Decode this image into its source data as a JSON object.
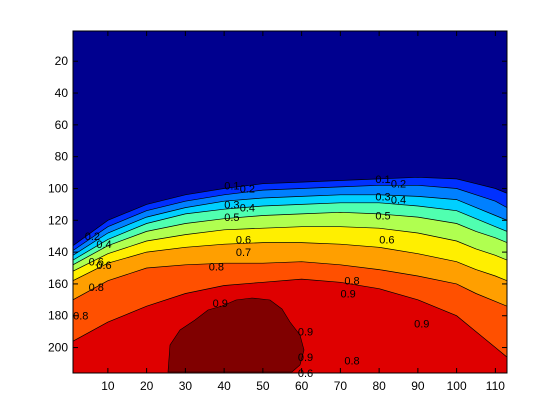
{
  "chart_data": {
    "type": "heatmap",
    "subtype": "filled-contour",
    "title": "",
    "xlabel": "",
    "ylabel": "",
    "xlim": [
      1,
      113
    ],
    "ylim": [
      1,
      216
    ],
    "y_reversed": true,
    "x_ticks": [
      10,
      20,
      30,
      40,
      50,
      60,
      70,
      80,
      90,
      100,
      110
    ],
    "y_ticks": [
      20,
      40,
      60,
      80,
      100,
      120,
      140,
      160,
      180,
      200
    ],
    "colormap": "jet",
    "levels": [
      0.1,
      0.2,
      0.3,
      0.4,
      0.5,
      0.6,
      0.7,
      0.8,
      0.9,
      1.0
    ],
    "band_colors": [
      "#00008f",
      "#0030ff",
      "#0080ff",
      "#00d0ff",
      "#50ffb0",
      "#b0ff50",
      "#ffef00",
      "#ff9f00",
      "#ff5000",
      "#df0000",
      "#800000"
    ],
    "contours": [
      {
        "level": 0.1,
        "y_points": [
          [
            1,
            136
          ],
          [
            10,
            120
          ],
          [
            20,
            110
          ],
          [
            30,
            104
          ],
          [
            40,
            100
          ],
          [
            50,
            97
          ],
          [
            60,
            96
          ],
          [
            70,
            95
          ],
          [
            80,
            94
          ],
          [
            90,
            93
          ],
          [
            100,
            94
          ],
          [
            105,
            97
          ],
          [
            110,
            100
          ],
          [
            113,
            103
          ]
        ]
      },
      {
        "level": 0.2,
        "y_points": [
          [
            1,
            139
          ],
          [
            10,
            124
          ],
          [
            20,
            114
          ],
          [
            30,
            108
          ],
          [
            40,
            104
          ],
          [
            50,
            101
          ],
          [
            60,
            100
          ],
          [
            70,
            99
          ],
          [
            80,
            98
          ],
          [
            90,
            98
          ],
          [
            100,
            100
          ],
          [
            105,
            104
          ],
          [
            110,
            108
          ],
          [
            113,
            112
          ]
        ]
      },
      {
        "level": 0.3,
        "y_points": [
          [
            1,
            142
          ],
          [
            10,
            128
          ],
          [
            20,
            118
          ],
          [
            30,
            112
          ],
          [
            40,
            108
          ],
          [
            50,
            106
          ],
          [
            60,
            105
          ],
          [
            70,
            104
          ],
          [
            80,
            104
          ],
          [
            90,
            105
          ],
          [
            100,
            107
          ],
          [
            105,
            112
          ],
          [
            110,
            117
          ],
          [
            113,
            120
          ]
        ]
      },
      {
        "level": 0.4,
        "y_points": [
          [
            1,
            145
          ],
          [
            10,
            132
          ],
          [
            20,
            122
          ],
          [
            30,
            116
          ],
          [
            40,
            113
          ],
          [
            50,
            111
          ],
          [
            60,
            110
          ],
          [
            70,
            109
          ],
          [
            80,
            109
          ],
          [
            90,
            111
          ],
          [
            100,
            114
          ],
          [
            105,
            119
          ],
          [
            110,
            124
          ],
          [
            113,
            127
          ]
        ]
      },
      {
        "level": 0.5,
        "y_points": [
          [
            1,
            148
          ],
          [
            10,
            136
          ],
          [
            20,
            127
          ],
          [
            30,
            122
          ],
          [
            40,
            119
          ],
          [
            50,
            117
          ],
          [
            60,
            116
          ],
          [
            70,
            115
          ],
          [
            80,
            116
          ],
          [
            90,
            118
          ],
          [
            100,
            122
          ],
          [
            105,
            127
          ],
          [
            110,
            131
          ],
          [
            113,
            134
          ]
        ]
      },
      {
        "level": 0.6,
        "y_points": [
          [
            1,
            152
          ],
          [
            10,
            141
          ],
          [
            20,
            133
          ],
          [
            30,
            129
          ],
          [
            40,
            126
          ],
          [
            50,
            125
          ],
          [
            60,
            124
          ],
          [
            70,
            124
          ],
          [
            80,
            125
          ],
          [
            90,
            128
          ],
          [
            100,
            133
          ],
          [
            105,
            138
          ],
          [
            110,
            142
          ],
          [
            113,
            145
          ]
        ]
      },
      {
        "level": 0.7,
        "y_points": [
          [
            1,
            158
          ],
          [
            10,
            147
          ],
          [
            20,
            140
          ],
          [
            30,
            137
          ],
          [
            40,
            135
          ],
          [
            50,
            134
          ],
          [
            60,
            134
          ],
          [
            70,
            135
          ],
          [
            80,
            137
          ],
          [
            90,
            141
          ],
          [
            100,
            146
          ],
          [
            105,
            151
          ],
          [
            110,
            155
          ],
          [
            113,
            158
          ]
        ]
      },
      {
        "level": 0.8,
        "y_points": [
          [
            1,
            170
          ],
          [
            10,
            158
          ],
          [
            20,
            150
          ],
          [
            30,
            148
          ],
          [
            40,
            147
          ],
          [
            50,
            147
          ],
          [
            60,
            146
          ],
          [
            70,
            148
          ],
          [
            80,
            151
          ],
          [
            90,
            155
          ],
          [
            100,
            160
          ],
          [
            105,
            166
          ],
          [
            110,
            171
          ],
          [
            113,
            174
          ]
        ]
      },
      {
        "level": 0.9,
        "y_points": [
          [
            1,
            196
          ],
          [
            10,
            184
          ],
          [
            20,
            174
          ],
          [
            30,
            166
          ],
          [
            40,
            161
          ],
          [
            50,
            159
          ],
          [
            60,
            157
          ],
          [
            70,
            159
          ],
          [
            80,
            163
          ],
          [
            90,
            170
          ],
          [
            100,
            180
          ],
          [
            105,
            190
          ],
          [
            110,
            200
          ],
          [
            113,
            206
          ]
        ]
      }
    ],
    "contour_labels": [
      {
        "text": "0.1",
        "x": 42,
        "y": 98
      },
      {
        "text": "0.2",
        "x": 46,
        "y": 100
      },
      {
        "text": "0.3",
        "x": 42,
        "y": 110
      },
      {
        "text": "0.4",
        "x": 46,
        "y": 112
      },
      {
        "text": "0.5",
        "x": 42,
        "y": 118
      },
      {
        "text": "0.6",
        "x": 45,
        "y": 132
      },
      {
        "text": "0.7",
        "x": 45,
        "y": 140
      },
      {
        "text": "0.8",
        "x": 38,
        "y": 149
      },
      {
        "text": "0.9",
        "x": 39,
        "y": 172
      },
      {
        "text": "0.1",
        "x": 81,
        "y": 94
      },
      {
        "text": "0.2",
        "x": 85,
        "y": 97
      },
      {
        "text": "0.3",
        "x": 81,
        "y": 105
      },
      {
        "text": "0.4",
        "x": 85,
        "y": 107
      },
      {
        "text": "0.5",
        "x": 81,
        "y": 117
      },
      {
        "text": "0.6",
        "x": 82,
        "y": 132
      },
      {
        "text": "0.8",
        "x": 73,
        "y": 158
      },
      {
        "text": "0.9",
        "x": 72,
        "y": 166
      },
      {
        "text": "0.9",
        "x": 61,
        "y": 190
      },
      {
        "text": "0.9",
        "x": 91,
        "y": 185
      },
      {
        "text": "0.9",
        "x": 61,
        "y": 206
      },
      {
        "text": "0.8",
        "x": 73,
        "y": 208
      },
      {
        "text": "0.6",
        "x": 61,
        "y": 216
      },
      {
        "text": "0.2",
        "x": 6,
        "y": 130
      },
      {
        "text": "0.4",
        "x": 9,
        "y": 135
      },
      {
        "text": "0.6",
        "x": 7,
        "y": 146
      },
      {
        "text": "0.6",
        "x": 9,
        "y": 148
      },
      {
        "text": "0.8",
        "x": 7,
        "y": 162
      },
      {
        "text": "0.8",
        "x": 3,
        "y": 180
      }
    ]
  }
}
